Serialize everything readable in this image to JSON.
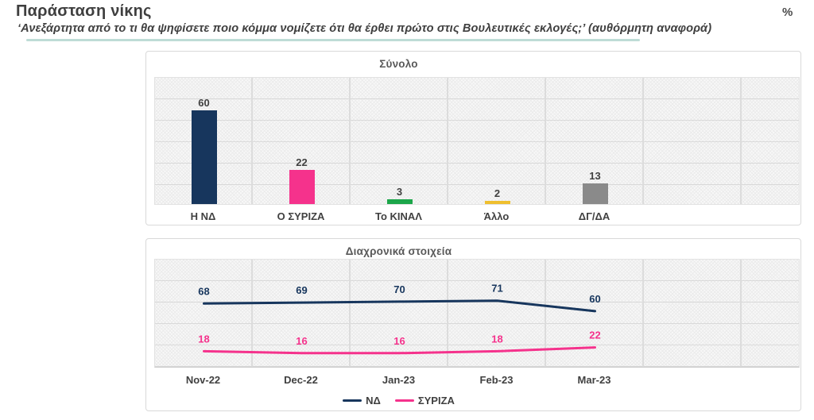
{
  "header": {
    "title": "Παράσταση νίκης",
    "subtitle": "‘Ανεξάρτητα από το τι θα ψηφίσετε ποιο κόμμα νομίζετε ότι θα έρθει πρώτο στις Βουλευτικές εκλογές;’ (αυθόρμητη αναφορά)",
    "unit_symbol": "%",
    "accent_underline_color": "#BEDCD6"
  },
  "colors": {
    "nd_navy": "#17365D",
    "syriza_pink": "#F5328C",
    "kinal_green": "#1CA64A",
    "other_yellow": "#EFBF2F",
    "dkna_gray": "#8A8A8A"
  },
  "chart_data": [
    {
      "type": "bar",
      "title": "Σύνολο",
      "categories": [
        "Η ΝΔ",
        "Ο ΣΥΡΙΖΑ",
        "Το ΚΙΝΑΛ",
        "Άλλο",
        "ΔΓ/ΔΑ"
      ],
      "values": [
        60,
        22,
        3,
        2,
        13
      ],
      "bar_colors": [
        "#17365D",
        "#F5328C",
        "#1CA64A",
        "#EFBF2F",
        "#8A8A8A"
      ],
      "ylim": [
        0,
        82
      ],
      "grid": true,
      "data_labels": true,
      "xlabel": "",
      "ylabel": ""
    },
    {
      "type": "line",
      "title": "Διαχρονικά στοιχεία",
      "x": [
        "Nov-22",
        "Dec-22",
        "Jan-23",
        "Feb-23",
        "Mar-23"
      ],
      "series": [
        {
          "name": "ΝΔ",
          "values": [
            68,
            69,
            70,
            71,
            60
          ],
          "color": "#17365D"
        },
        {
          "name": "ΣΥΡΙΖΑ",
          "values": [
            18,
            16,
            16,
            18,
            22
          ],
          "color": "#F5328C"
        }
      ],
      "ylim": [
        0,
        114
      ],
      "grid": true,
      "data_labels": true,
      "legend_position": "bottom"
    }
  ]
}
